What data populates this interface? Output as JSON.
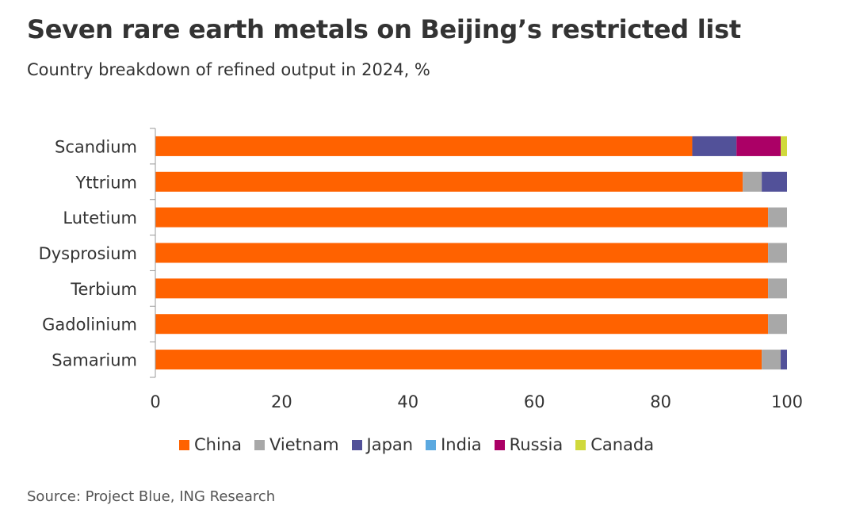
{
  "title": "Seven rare earth metals on Beijing’s restricted list",
  "subtitle": "Country breakdown of refined output in 2024, %",
  "source": "Source: Project Blue, ING Research",
  "colors": {
    "China": "#ff6200",
    "Vietnam": "#a8a8a8",
    "Japan": "#525199",
    "India": "#5ba9e0",
    "Russia": "#ab0066",
    "Canada": "#d0d93c"
  },
  "legend": [
    {
      "name": "China",
      "color": "#ff6200"
    },
    {
      "name": "Vietnam",
      "color": "#a8a8a8"
    },
    {
      "name": "Japan",
      "color": "#525199"
    },
    {
      "name": "India",
      "color": "#5ba9e0"
    },
    {
      "name": "Russia",
      "color": "#ab0066"
    },
    {
      "name": "Canada",
      "color": "#d0d93c"
    }
  ],
  "chart_data": {
    "type": "bar",
    "orientation": "horizontal",
    "stacked": true,
    "categories": [
      "Scandium",
      "Yttrium",
      "Lutetium",
      "Dysprosium",
      "Terbium",
      "Gadolinium",
      "Samarium"
    ],
    "series": [
      {
        "name": "China",
        "values": [
          85,
          93,
          97,
          97,
          97,
          97,
          96
        ]
      },
      {
        "name": "Vietnam",
        "values": [
          0,
          3,
          3,
          3,
          3,
          3,
          3
        ]
      },
      {
        "name": "Japan",
        "values": [
          7,
          4,
          0,
          0,
          0,
          0,
          1
        ]
      },
      {
        "name": "India",
        "values": [
          0,
          0,
          0,
          0,
          0,
          0,
          0
        ]
      },
      {
        "name": "Russia",
        "values": [
          7,
          0,
          0,
          0,
          0,
          0,
          0
        ]
      },
      {
        "name": "Canada",
        "values": [
          1,
          0,
          0,
          0,
          0,
          0,
          0
        ]
      }
    ],
    "xlim": [
      0,
      100
    ],
    "xticks": [
      0,
      20,
      40,
      60,
      80,
      100
    ],
    "grid": false,
    "legend_position": "bottom"
  }
}
